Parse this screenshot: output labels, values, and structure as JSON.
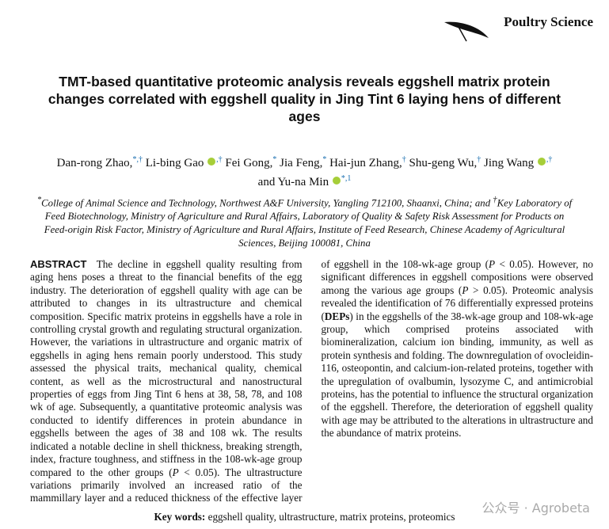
{
  "header": {
    "journal": "Poultry Science"
  },
  "title": "TMT-based quantitative proteomic analysis reveals eggshell matrix protein changes correlated with eggshell quality in Jing Tint 6 laying hens of different ages",
  "authors": [
    {
      "name": "Dan-rong Zhao,",
      "marks": "*,†",
      "orcid": false
    },
    {
      "name": "Li-bing Gao",
      "marks": ",†",
      "orcid": true
    },
    {
      "name": "Fei Gong,",
      "marks": "*",
      "orcid": false
    },
    {
      "name": "Jia Feng,",
      "marks": "*",
      "orcid": false
    },
    {
      "name": "Hai-jun Zhang,",
      "marks": "†",
      "orcid": false
    },
    {
      "name": "Shu-geng Wu,",
      "marks": "†",
      "orcid": false
    },
    {
      "name": "Jing Wang",
      "marks": ",†",
      "orcid": true
    },
    {
      "name": "and Yu-na Min",
      "marks": "*,1",
      "orcid": true
    }
  ],
  "affiliations": [
    {
      "mark": "*",
      "text": "College of Animal Science and Technology, Northwest A&F University, Yangling 712100, Shaanxi, China;"
    },
    {
      "mark": "†",
      "text": "Key Laboratory of Feed Biotechnology, Ministry of Agriculture and Rural Affairs, Laboratory of Quality & Safety Risk Assessment for Products on Feed-origin Risk Factor, Ministry of Agriculture and Rural Affairs, Institute of Feed Research, Chinese Academy of Agricultural Sciences, Beijing 100081, China"
    }
  ],
  "affiliations_joiner": " and ",
  "abstract": {
    "label": "ABSTRACT",
    "parts": [
      {
        "text": "The decline in eggshell quality resulting from aging hens poses a threat to the financial benefits of the egg industry. The deterioration of eggshell quality with age can be attributed to changes in its ultrastructure and chemical composition. Specific matrix proteins in eggshells have a role in controlling crystal growth and regulating structural organization. However, the variations in ultrastructure and organic matrix of eggshells in aging hens remain poorly understood. This study assessed the physical traits, mechanical quality, chemical content, as well as the microstructural and nanostructural properties of eggs from Jing Tint 6 hens at 38, 58, 78, and 108 wk of age. Subsequently, a quantitative proteomic analysis was conducted to identify differences in protein abundance in eggshells between the ages of 38 and 108 wk. The results indicated a notable decline in shell thickness, breaking strength, index, fracture toughness, and stiffness in the 108-wk-age group compared to the other groups (",
        "style": "normal"
      },
      {
        "text": "P",
        "style": "italic"
      },
      {
        "text": " < 0.05). The ultrastructure variations primarily involved an increased ratio of the mammillary layer and a reduced thickness of the effective layer of eggshell in the 108-wk-age group (",
        "style": "normal"
      },
      {
        "text": "P",
        "style": "italic"
      },
      {
        "text": " < 0.05). However, no significant differences in eggshell compositions were observed among the various age groups (",
        "style": "normal"
      },
      {
        "text": "P",
        "style": "italic"
      },
      {
        "text": " > 0.05). Proteomic analysis revealed the identification of 76 differentially expressed proteins (",
        "style": "normal"
      },
      {
        "text": "DEPs",
        "style": "bold"
      },
      {
        "text": ") in the eggshells of the 38-wk-age group and 108-wk-age group, which comprised proteins associated with biomineralization, calcium ion binding, immunity, as well as protein synthesis and folding. The downregulation of ovocleidin-116, osteopontin, and calcium-ion-related proteins, together with the upregulation of ovalbumin, lysozyme C, and antimicrobial proteins, has the potential to influence the structural organization of the eggshell. Therefore, the deterioration of eggshell quality with age may be attributed to the alterations in ultrastructure and the abundance of matrix proteins.",
        "style": "normal"
      }
    ]
  },
  "keywords": {
    "label": "Key words:",
    "text": "eggshell quality, ultrastructure, matrix proteins, proteomics"
  },
  "watermark": "公众号 · Agrobeta"
}
